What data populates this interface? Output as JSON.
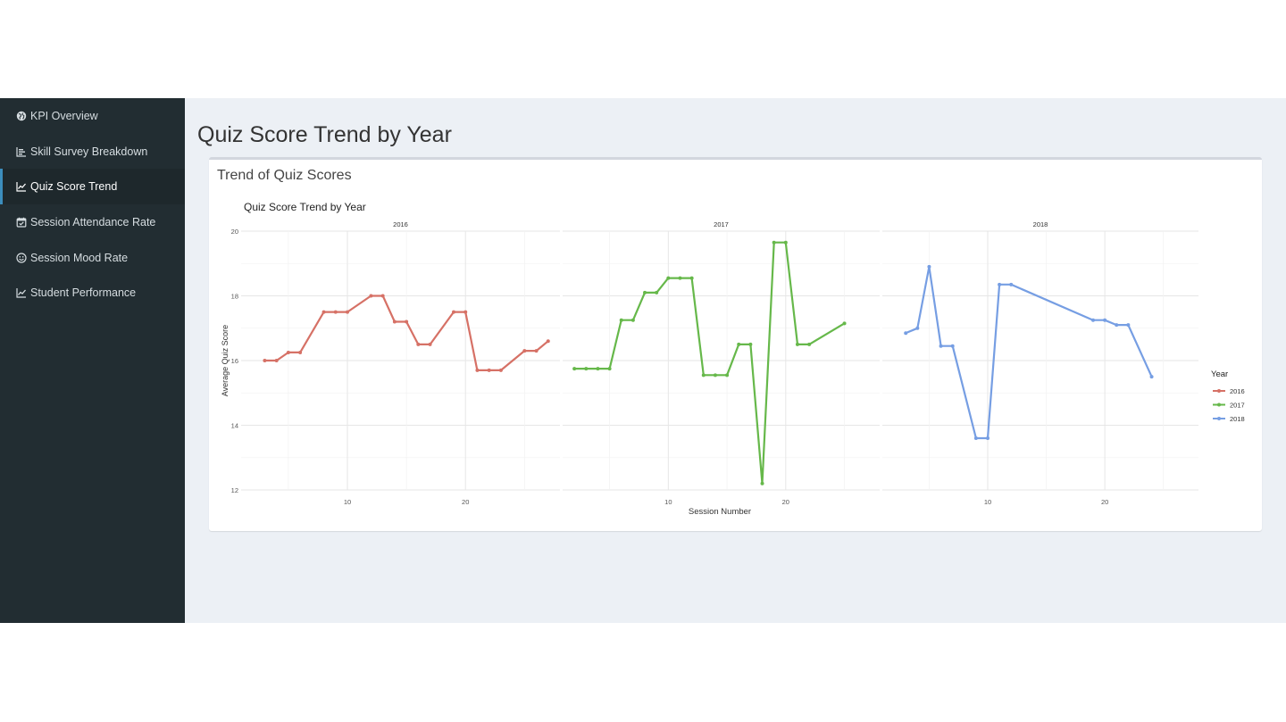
{
  "sidebar": {
    "items": [
      {
        "label": "KPI Overview",
        "icon": "globe-icon",
        "active": false
      },
      {
        "label": "Skill Survey Breakdown",
        "icon": "bar-chart-icon",
        "active": false
      },
      {
        "label": "Quiz Score Trend",
        "icon": "line-chart-icon",
        "active": true
      },
      {
        "label": "Session Attendance Rate",
        "icon": "calendar-check-icon",
        "active": false
      },
      {
        "label": "Session Mood Rate",
        "icon": "smile-icon",
        "active": false
      },
      {
        "label": "Student Performance",
        "icon": "line-chart-icon",
        "active": false
      }
    ]
  },
  "page": {
    "title": "Quiz Score Trend by Year"
  },
  "box": {
    "title": "Trend of Quiz Scores"
  },
  "chart_data": {
    "type": "line",
    "title": "Quiz Score Trend by Year",
    "xlabel": "Session Number",
    "ylabel": "Average Quiz Score",
    "ylim": [
      12,
      20
    ],
    "xlim": [
      1,
      28
    ],
    "y_ticks": [
      12,
      14,
      16,
      18,
      20
    ],
    "x_ticks": [
      10,
      20
    ],
    "grid": true,
    "legend": {
      "title": "Year",
      "position": "right"
    },
    "series": [
      {
        "name": "2016",
        "color": "#d67166",
        "x": [
          3,
          4,
          5,
          6,
          8,
          9,
          10,
          12,
          13,
          14,
          15,
          16,
          17,
          19,
          20,
          21,
          22,
          23,
          25,
          26,
          27
        ],
        "y": [
          16.0,
          16.0,
          16.25,
          16.25,
          17.5,
          17.5,
          17.5,
          18.0,
          18.0,
          17.2,
          17.2,
          16.5,
          16.5,
          17.5,
          17.5,
          15.7,
          15.7,
          15.7,
          16.3,
          16.3,
          16.6
        ]
      },
      {
        "name": "2017",
        "color": "#66b84a",
        "x": [
          2,
          3,
          4,
          5,
          6,
          7,
          8,
          9,
          10,
          11,
          12,
          13,
          14,
          15,
          16,
          17,
          18,
          19,
          20,
          21,
          22,
          25
        ],
        "y": [
          15.75,
          15.75,
          15.75,
          15.75,
          17.25,
          17.25,
          18.1,
          18.1,
          18.55,
          18.55,
          18.55,
          15.55,
          15.55,
          15.55,
          16.5,
          16.5,
          12.2,
          19.65,
          19.65,
          16.5,
          16.5,
          17.15
        ]
      },
      {
        "name": "2018",
        "color": "#769ee3",
        "x": [
          3,
          4,
          5,
          6,
          7,
          9,
          10,
          11,
          12,
          19,
          20,
          21,
          22,
          24
        ],
        "y": [
          16.85,
          17.0,
          18.9,
          16.45,
          16.45,
          13.6,
          13.6,
          18.35,
          18.35,
          17.25,
          17.25,
          17.1,
          17.1,
          15.5
        ]
      }
    ]
  }
}
